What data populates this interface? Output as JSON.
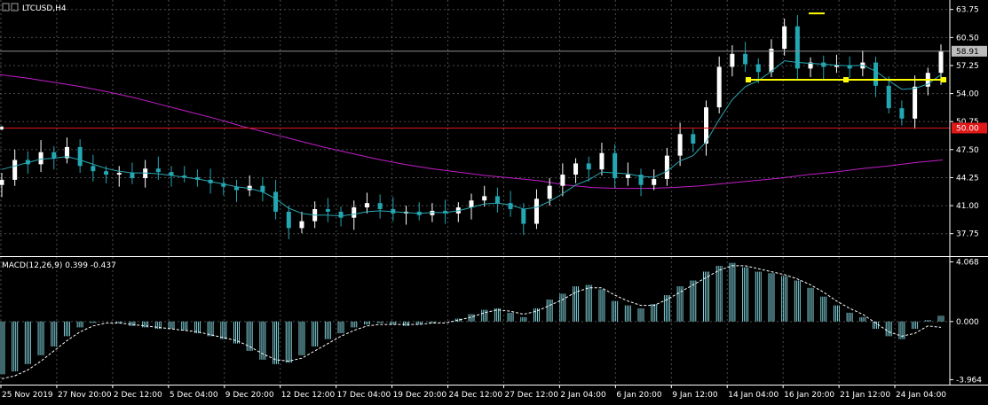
{
  "chart_data": {
    "type": "line",
    "symbol": "LTCUSD,H4",
    "colors": {
      "background": "#000000",
      "grid": "#4c4c4c",
      "frame": "#ffffff",
      "candle_up": "#ffffff",
      "candle_down": "#22a7b3",
      "ma_fast": "#2aa6b2",
      "ma_slow": "#c21ec9",
      "hline_red": "#e01818",
      "hline_yellow": "#ffff00",
      "price_tag": "#bdbdbd",
      "red_tag": "#e01818",
      "macd_hist": "#7fd0d8",
      "macd_signal": "#ffffff"
    },
    "price_panel": {
      "ylim": [
        35.15,
        64.85
      ],
      "y_ticks": [
        "63.75",
        "60.50",
        "57.25",
        "54.00",
        "50.75",
        "47.50",
        "44.25",
        "41.00",
        "37.75"
      ],
      "current_price": "58.91",
      "red_level": "50.00",
      "yellow_level": 55.6,
      "yellow_top_mark": 63.3,
      "grid": true
    },
    "macd_panel": {
      "title": "MACD(12,26,9) 0.399 -0.437",
      "ylim": [
        -4.3,
        4.4
      ],
      "y_ticks": [
        "4.068",
        "0.000",
        "-3.964"
      ]
    },
    "x_tick_labels": [
      "25 Nov 2019",
      "27 Nov 20:00",
      "2 Dec 12:00",
      "5 Dec 04:00",
      "9 Dec 20:00",
      "12 Dec 12:00",
      "17 Dec 04:00",
      "19 Dec 20:00",
      "24 Dec 12:00",
      "27 Dec 12:00",
      "2 Jan 04:00",
      "6 Jan 20:00",
      "9 Jan 12:00",
      "14 Jan 04:00",
      "16 Jan 20:00",
      "21 Jan 12:00",
      "24 Jan 04:00"
    ],
    "close_series": {
      "name": "LTCUSD H4 close (approx.)",
      "x_index_count": 17,
      "values": [
        44.0,
        46.3,
        45.8,
        47.2,
        46.5,
        47.8,
        45.6,
        45.0,
        44.6,
        44.8,
        44.2,
        45.3,
        44.9,
        44.5,
        44.3,
        44.0,
        43.6,
        43.2,
        42.8,
        43.3,
        42.6,
        40.3,
        38.4,
        39.2,
        40.6,
        40.3,
        39.6,
        40.8,
        41.3,
        40.6,
        40.1,
        40.3,
        39.9,
        40.4,
        40.1,
        40.8,
        41.6,
        42.1,
        41.3,
        40.6,
        38.9,
        41.8,
        43.3,
        44.6,
        45.9,
        45.2,
        47.1,
        44.2,
        44.6,
        43.4,
        44.1,
        46.8,
        49.3,
        48.2,
        52.4,
        57.1,
        58.6,
        57.4,
        56.5,
        59.2,
        61.8,
        56.9,
        57.6,
        57.1,
        57.3,
        56.9,
        57.6,
        54.9,
        52.3,
        51.1,
        54.8,
        56.4,
        58.9
      ],
      "ma_fast_values": [
        45.2,
        45.6,
        46.0,
        46.4,
        46.5,
        46.7,
        46.3,
        45.8,
        45.3,
        45.0,
        44.8,
        44.8,
        44.7,
        44.5,
        44.3,
        44.1,
        43.8,
        43.5,
        43.2,
        43.0,
        42.6,
        41.8,
        40.7,
        40.1,
        39.9,
        39.9,
        39.8,
        40.0,
        40.3,
        40.4,
        40.3,
        40.2,
        40.1,
        40.2,
        40.2,
        40.4,
        40.8,
        41.2,
        41.3,
        41.1,
        40.6,
        40.8,
        41.5,
        42.4,
        43.4,
        44.0,
        44.9,
        44.8,
        44.7,
        44.4,
        44.3,
        45.0,
        46.2,
        46.8,
        48.4,
        51.0,
        53.3,
        54.8,
        55.5,
        56.6,
        57.8,
        57.6,
        57.5,
        57.4,
        57.3,
        57.2,
        57.3,
        56.6,
        55.5,
        54.5,
        54.6,
        55.1,
        56.2
      ],
      "ma_slow_values": [
        56.2,
        55.8,
        55.3,
        54.8,
        54.2,
        53.5,
        52.7,
        51.9,
        51.1,
        50.2,
        49.4,
        48.6,
        47.8,
        47.1,
        46.4,
        45.8,
        45.3,
        44.9,
        44.5,
        44.2,
        43.9,
        43.4,
        43.1,
        43.0,
        43.0,
        43.1,
        43.3,
        43.6,
        43.9,
        44.2,
        44.6,
        44.9,
        45.3,
        45.6,
        46.0,
        46.3
      ]
    },
    "macd_series": {
      "name": "MACD",
      "hist_values": [
        -3.6,
        -3.4,
        -2.9,
        -2.3,
        -1.7,
        -1.0,
        -0.4,
        -0.1,
        0.0,
        -0.1,
        -0.3,
        -0.4,
        -0.5,
        -0.5,
        -0.6,
        -0.8,
        -1.0,
        -1.2,
        -1.5,
        -2.0,
        -2.6,
        -2.9,
        -2.8,
        -2.3,
        -1.7,
        -1.2,
        -0.8,
        -0.4,
        -0.2,
        -0.1,
        -0.2,
        -0.3,
        -0.2,
        -0.1,
        0.0,
        0.2,
        0.5,
        0.8,
        0.9,
        0.6,
        0.3,
        0.9,
        1.5,
        1.9,
        2.4,
        2.5,
        2.2,
        1.4,
        1.1,
        0.9,
        1.2,
        1.8,
        2.4,
        2.8,
        3.4,
        3.8,
        4.0,
        3.7,
        3.4,
        3.3,
        3.1,
        2.8,
        2.3,
        1.7,
        1.1,
        0.6,
        0.3,
        -0.5,
        -1.0,
        -1.2,
        -0.5,
        0.1,
        0.4
      ],
      "signal_values": [
        -3.9,
        -3.7,
        -3.3,
        -2.7,
        -2.0,
        -1.3,
        -0.7,
        -0.3,
        -0.1,
        -0.1,
        -0.2,
        -0.3,
        -0.4,
        -0.5,
        -0.6,
        -0.7,
        -0.9,
        -1.1,
        -1.3,
        -1.7,
        -2.2,
        -2.6,
        -2.7,
        -2.5,
        -2.0,
        -1.5,
        -1.0,
        -0.6,
        -0.3,
        -0.2,
        -0.2,
        -0.2,
        -0.2,
        -0.1,
        -0.1,
        0.1,
        0.3,
        0.6,
        0.8,
        0.7,
        0.5,
        0.7,
        1.1,
        1.5,
        2.0,
        2.3,
        2.3,
        1.8,
        1.4,
        1.1,
        1.1,
        1.5,
        2.0,
        2.5,
        3.0,
        3.5,
        3.8,
        3.8,
        3.6,
        3.4,
        3.2,
        2.9,
        2.5,
        2.0,
        1.4,
        0.9,
        0.5,
        -0.1,
        -0.7,
        -1.0,
        -0.8,
        -0.3,
        -0.4
      ]
    }
  }
}
